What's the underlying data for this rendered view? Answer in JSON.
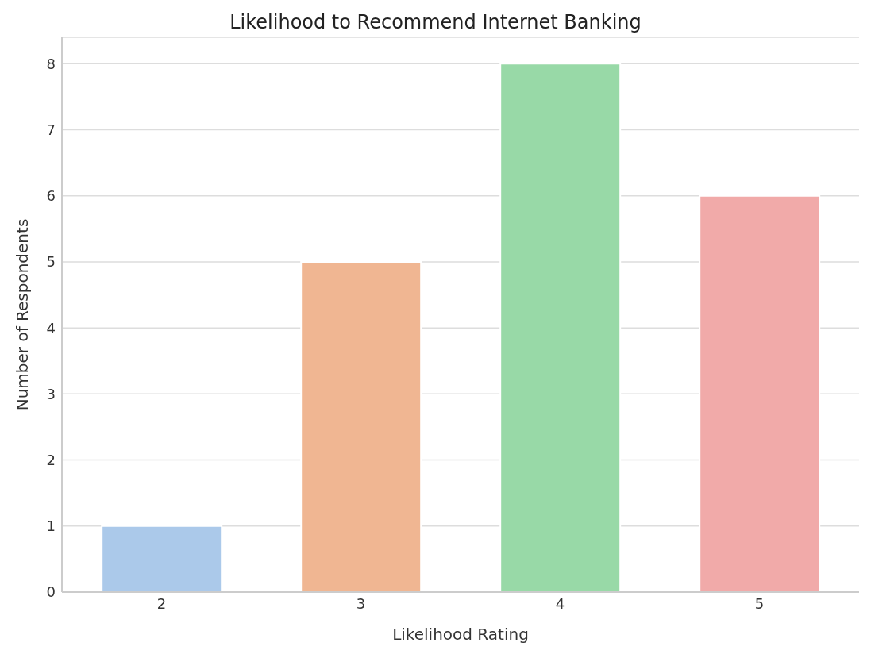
{
  "chart_data": {
    "type": "bar",
    "title": "Likelihood to Recommend Internet Banking",
    "xlabel": "Likelihood Rating",
    "ylabel": "Number of Respondents",
    "categories": [
      "2",
      "3",
      "4",
      "5"
    ],
    "values": [
      1,
      5,
      8,
      6
    ],
    "colors": [
      "#abc9ea",
      "#f0b692",
      "#98d9a7",
      "#f1aaa9"
    ],
    "ylim": [
      0,
      8.4
    ],
    "yticks": [
      0,
      1,
      2,
      3,
      4,
      5,
      6,
      7,
      8
    ],
    "grid": "y"
  }
}
